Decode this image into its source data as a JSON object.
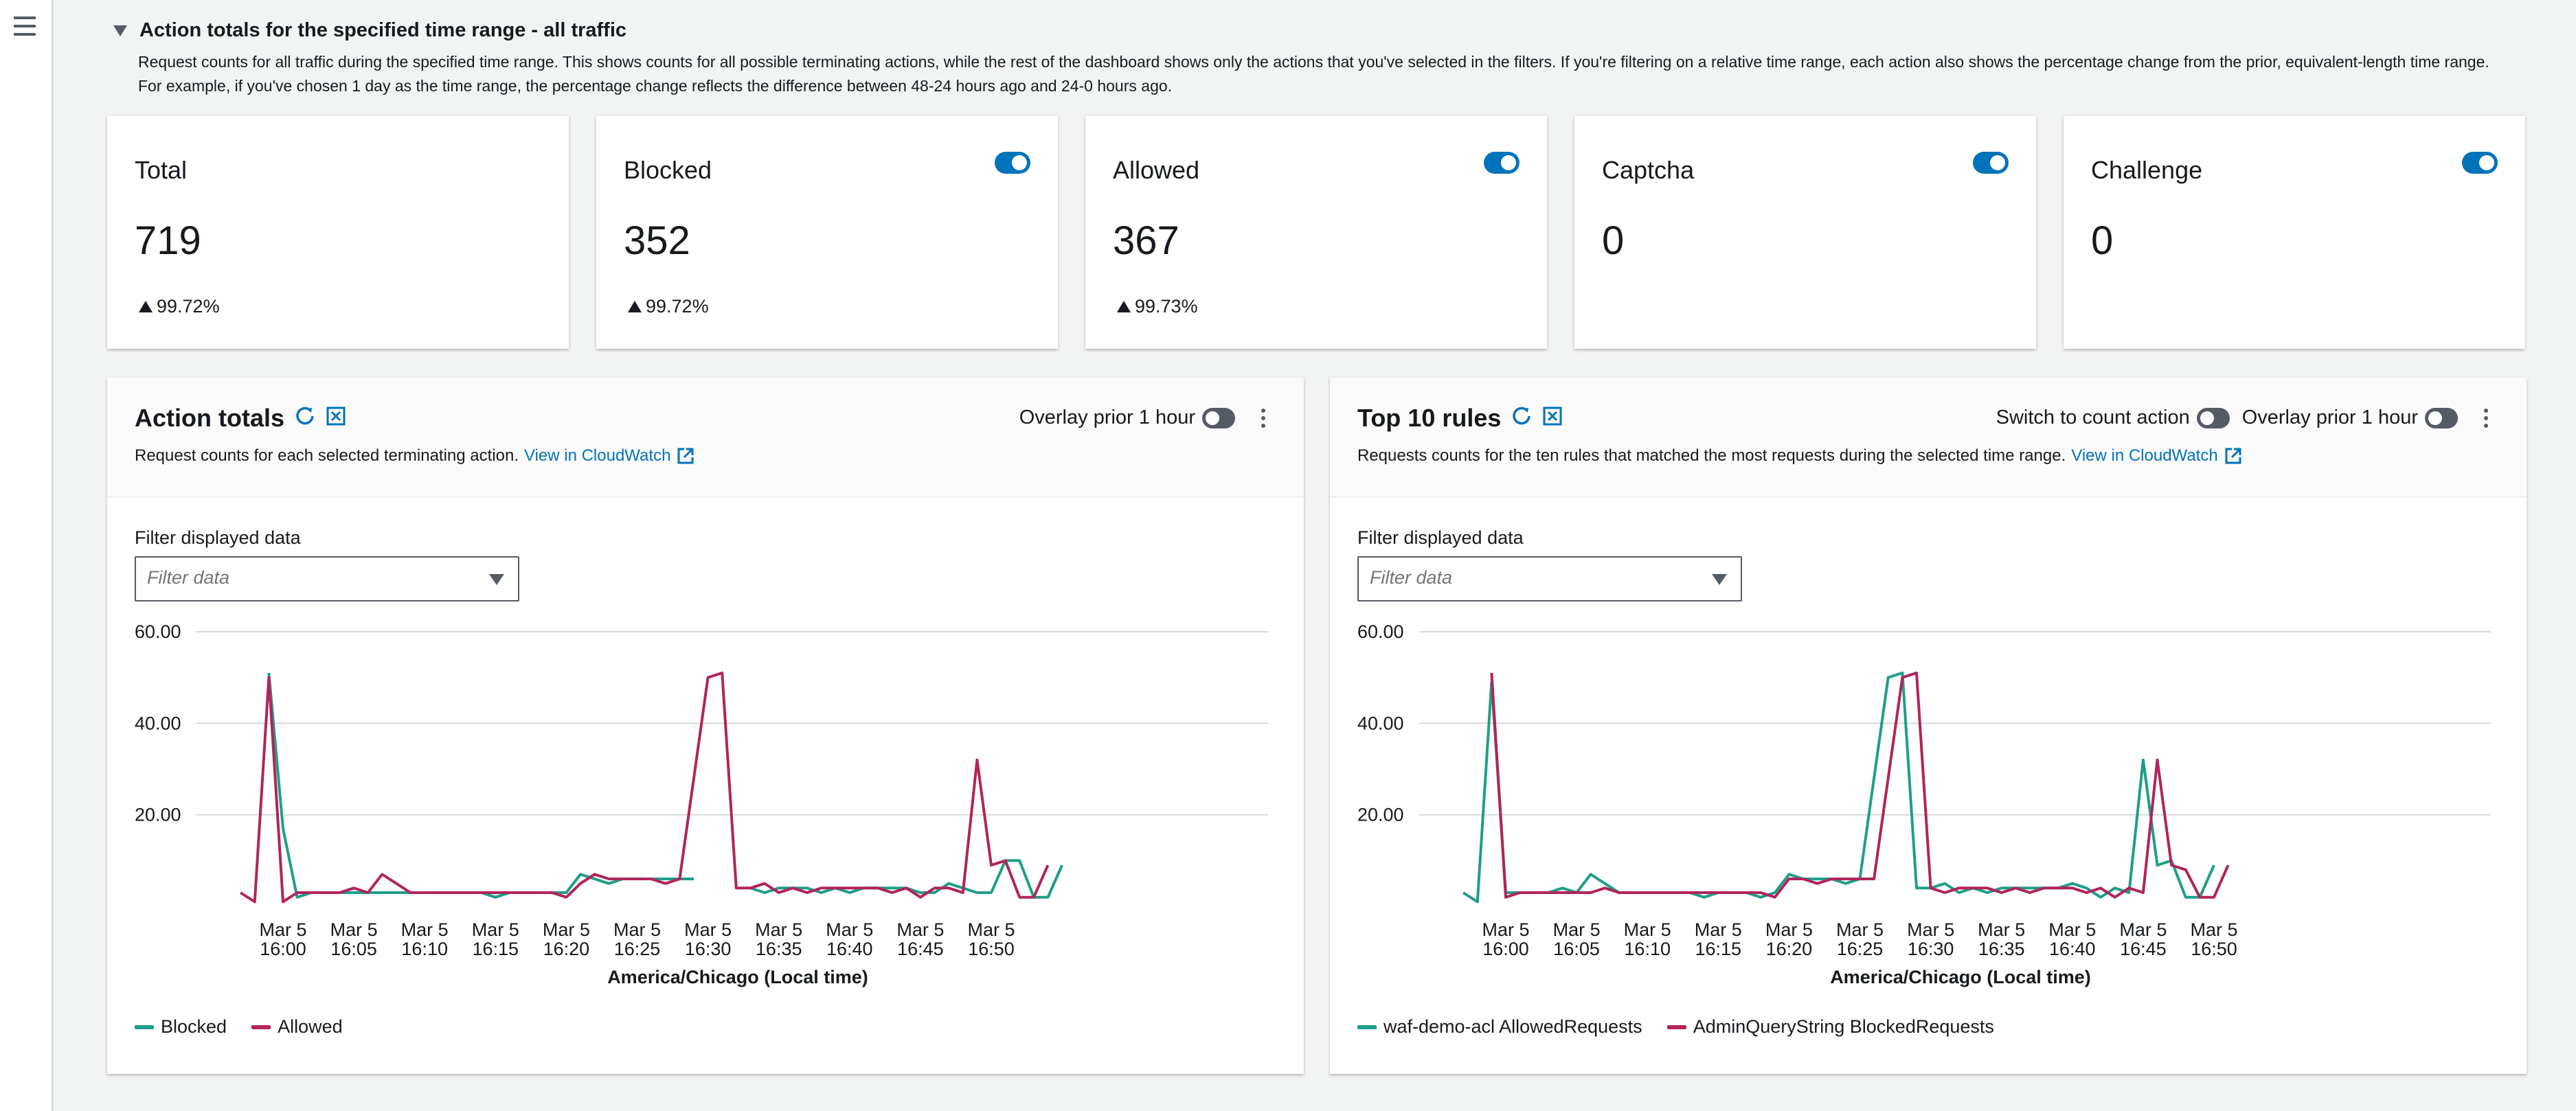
{
  "section": {
    "title": "Action totals for the specified time range - all traffic",
    "description": "Request counts for all traffic during the specified time range. This shows counts for all possible terminating actions, while the rest of the dashboard shows only the actions that you've selected in the filters. If you're filtering on a relative time range, each action also shows the percentage change from the prior, equivalent-length time range. For example, if you've chosen 1 day as the time range, the percentage change reflects the difference between 48-24 hours ago and 24-0 hours ago."
  },
  "cards": [
    {
      "label": "Total",
      "value": "719",
      "change": "99.72%",
      "toggle": false
    },
    {
      "label": "Blocked",
      "value": "352",
      "change": "99.72%",
      "toggle": true
    },
    {
      "label": "Allowed",
      "value": "367",
      "change": "99.73%",
      "toggle": true
    },
    {
      "label": "Captcha",
      "value": "0",
      "change": "",
      "toggle": true
    },
    {
      "label": "Challenge",
      "value": "0",
      "change": "",
      "toggle": true
    }
  ],
  "colors": {
    "teal": "#1f9e89",
    "crimson": "#b0255a",
    "link": "#0073bb",
    "toggle_on": "#0073bb",
    "toggle_off": "#545b64"
  },
  "panels": [
    {
      "title": "Action totals",
      "description": "Request counts for each selected terminating action.",
      "link": "View in CloudWatch",
      "count_switch_label": "",
      "overlay_label": "Overlay prior 1 hour",
      "filter_label": "Filter displayed data",
      "filter_placeholder": "Filter data",
      "legend": [
        "Blocked",
        "Allowed"
      ]
    },
    {
      "title": "Top 10 rules",
      "description": "Requests counts for the ten rules that matched the most requests during the selected time range.",
      "link": "View in CloudWatch",
      "count_switch_label": "Switch to count action",
      "overlay_label": "Overlay prior 1 hour",
      "filter_label": "Filter displayed data",
      "filter_placeholder": "Filter data",
      "legend": [
        "waf-demo-acl AllowedRequests",
        "AdminQueryString BlockedRequests"
      ]
    }
  ],
  "chart_data": [
    {
      "type": "line",
      "xlabel": "America/Chicago (Local time)",
      "ylabel": "",
      "ylim": [
        0,
        60
      ],
      "y_ticks": [
        "60.00",
        "40.00",
        "20.00"
      ],
      "grid": true,
      "legend_position": "bottom-left",
      "x_ticks": [
        [
          "Mar 5",
          "16:00"
        ],
        [
          "Mar 5",
          "16:05"
        ],
        [
          "Mar 5",
          "16:10"
        ],
        [
          "Mar 5",
          "16:15"
        ],
        [
          "Mar 5",
          "16:20"
        ],
        [
          "Mar 5",
          "16:25"
        ],
        [
          "Mar 5",
          "16:30"
        ],
        [
          "Mar 5",
          "16:35"
        ],
        [
          "Mar 5",
          "16:40"
        ],
        [
          "Mar 5",
          "16:45"
        ],
        [
          "Mar 5",
          "16:50"
        ]
      ],
      "x_minutes": [
        -3,
        -2,
        -1,
        0,
        1,
        2,
        3,
        4,
        5,
        6,
        7,
        8,
        9,
        10,
        11,
        12,
        13,
        14,
        15,
        16,
        17,
        18,
        19,
        20,
        21,
        22,
        23,
        24,
        25,
        26,
        27,
        28,
        29,
        30,
        31,
        32,
        33,
        34,
        35,
        36,
        37,
        38,
        39,
        40,
        41,
        42,
        43,
        44,
        45,
        46,
        47,
        48,
        49,
        50,
        51,
        52,
        53,
        54,
        55,
        56
      ],
      "series": [
        {
          "name": "Blocked",
          "color": "#1f9e89",
          "values": [
            null,
            null,
            51,
            17,
            2,
            3,
            3,
            3,
            3,
            3,
            3,
            3,
            3,
            3,
            3,
            3,
            3,
            3,
            2,
            3,
            3,
            3,
            3,
            3,
            7,
            6,
            5,
            6,
            6,
            6,
            6,
            6,
            6,
            null,
            null,
            null,
            4,
            3,
            4,
            4,
            4,
            3,
            4,
            3,
            4,
            4,
            4,
            4,
            3,
            3,
            5,
            4,
            3,
            3,
            10,
            10,
            2,
            2,
            9,
            null
          ]
        },
        {
          "name": "Allowed",
          "color": "#b0255a",
          "values": [
            3,
            1,
            50,
            1,
            3,
            3,
            3,
            3,
            4,
            3,
            7,
            5,
            3,
            3,
            3,
            3,
            3,
            3,
            3,
            3,
            3,
            3,
            3,
            2,
            5,
            7,
            6,
            6,
            6,
            6,
            5,
            6,
            28,
            50,
            51,
            4,
            4,
            5,
            3,
            4,
            3,
            4,
            4,
            4,
            4,
            4,
            3,
            4,
            2,
            4,
            4,
            3,
            32,
            9,
            10,
            2,
            2,
            9,
            null,
            null
          ]
        }
      ]
    },
    {
      "type": "line",
      "xlabel": "America/Chicago (Local time)",
      "ylabel": "",
      "ylim": [
        0,
        60
      ],
      "y_ticks": [
        "60.00",
        "40.00",
        "20.00"
      ],
      "grid": true,
      "legend_position": "bottom-left",
      "x_ticks": [
        [
          "Mar 5",
          "16:00"
        ],
        [
          "Mar 5",
          "16:05"
        ],
        [
          "Mar 5",
          "16:10"
        ],
        [
          "Mar 5",
          "16:15"
        ],
        [
          "Mar 5",
          "16:20"
        ],
        [
          "Mar 5",
          "16:25"
        ],
        [
          "Mar 5",
          "16:30"
        ],
        [
          "Mar 5",
          "16:35"
        ],
        [
          "Mar 5",
          "16:40"
        ],
        [
          "Mar 5",
          "16:45"
        ],
        [
          "Mar 5",
          "16:50"
        ]
      ],
      "x_minutes": [
        -3,
        -2,
        -1,
        0,
        1,
        2,
        3,
        4,
        5,
        6,
        7,
        8,
        9,
        10,
        11,
        12,
        13,
        14,
        15,
        16,
        17,
        18,
        19,
        20,
        21,
        22,
        23,
        24,
        25,
        26,
        27,
        28,
        29,
        30,
        31,
        32,
        33,
        34,
        35,
        36,
        37,
        38,
        39,
        40,
        41,
        42,
        43,
        44,
        45,
        46,
        47,
        48,
        49,
        50,
        51,
        52,
        53,
        54,
        55,
        56
      ],
      "series": [
        {
          "name": "waf-demo-acl AllowedRequests",
          "color": "#1f9e89",
          "values": [
            3,
            1,
            49,
            3,
            3,
            3,
            3,
            4,
            3,
            7,
            5,
            3,
            3,
            3,
            3,
            3,
            3,
            2,
            3,
            3,
            3,
            2,
            3,
            7,
            6,
            6,
            6,
            5,
            6,
            28,
            50,
            51,
            4,
            4,
            5,
            3,
            4,
            3,
            4,
            4,
            4,
            4,
            4,
            5,
            4,
            2,
            4,
            3,
            32,
            9,
            10,
            2,
            2,
            9,
            null,
            null,
            null,
            null,
            null,
            null
          ]
        },
        {
          "name": "AdminQueryString BlockedRequests",
          "color": "#b0255a",
          "values": [
            null,
            null,
            51,
            2,
            3,
            3,
            3,
            3,
            3,
            3,
            4,
            3,
            3,
            3,
            3,
            3,
            3,
            3,
            3,
            3,
            3,
            3,
            2,
            6,
            6,
            5,
            6,
            6,
            6,
            6,
            28,
            50,
            51,
            4,
            3,
            4,
            4,
            4,
            3,
            4,
            3,
            4,
            4,
            4,
            3,
            4,
            2,
            4,
            3,
            32,
            9,
            8,
            2,
            2,
            9,
            null,
            null,
            null,
            null,
            null
          ]
        }
      ]
    }
  ]
}
